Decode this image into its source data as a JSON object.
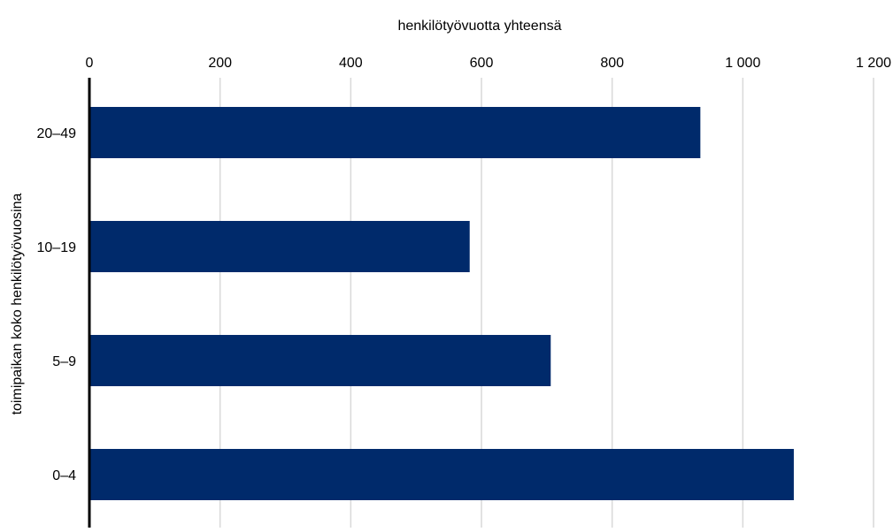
{
  "chart_data": {
    "type": "bar",
    "orientation": "horizontal",
    "title": "",
    "xlabel": "henkilötyövuotta yhteensä",
    "ylabel": "toimipaikan koko henkilötyövuosina",
    "categories": [
      "20–49",
      "10–19",
      "5–9",
      "0–4"
    ],
    "values": [
      935,
      582,
      706,
      1078
    ],
    "xlim": [
      0,
      1200
    ],
    "xticks": [
      0,
      200,
      400,
      600,
      800,
      1000,
      1200
    ],
    "xtick_labels": [
      "0",
      "200",
      "400",
      "600",
      "800",
      "1 000",
      "1 200"
    ],
    "x_axis_position": "top",
    "grid": true,
    "legend": "none",
    "colors": {
      "bar": "#002a6b",
      "grid": "#d9d9d9",
      "axis": "#000000"
    }
  }
}
